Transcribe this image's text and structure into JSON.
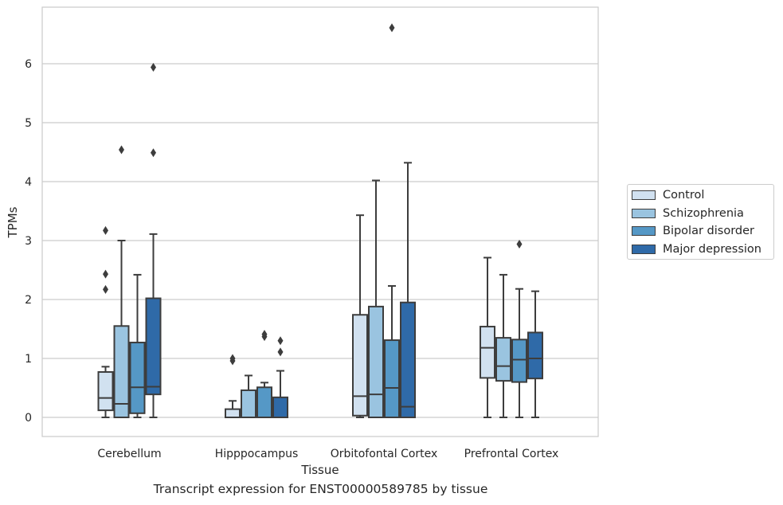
{
  "chart_data": {
    "type": "box",
    "caption": "Transcript expression for ENST00000589785 by tissue",
    "xlabel": "Tissue",
    "ylabel": "TPMs",
    "ylim": [
      -0.32,
      6.95
    ],
    "yticks": [
      "0",
      "1",
      "2",
      "3",
      "4",
      "5",
      "6"
    ],
    "ytick_values": [
      0,
      1,
      2,
      3,
      4,
      5,
      6
    ],
    "grid": true,
    "legend_position": "right",
    "categories": [
      "Cerebellum",
      "Hipppocampus",
      "Orbitofontal Cortex",
      "Prefrontal Cortex"
    ],
    "series": [
      {
        "name": "Control",
        "color": "#d1e1f0",
        "boxes": [
          {
            "whislo": 0,
            "q1": 0.12,
            "med": 0.33,
            "q3": 0.77,
            "whishi": 0.86,
            "fliers": [
              2.17,
              2.43,
              3.17
            ]
          },
          {
            "whislo": 0,
            "q1": 0,
            "med": 0,
            "q3": 0.14,
            "whishi": 0.28,
            "fliers": [
              0.96,
              1.0
            ]
          },
          {
            "whislo": 0,
            "q1": 0.03,
            "med": 0.36,
            "q3": 1.74,
            "whishi": 3.43,
            "fliers": []
          },
          {
            "whislo": 0,
            "q1": 0.67,
            "med": 1.18,
            "q3": 1.54,
            "whishi": 2.71,
            "fliers": []
          }
        ]
      },
      {
        "name": "Schizophrenia",
        "color": "#9ac4e0",
        "boxes": [
          {
            "whislo": 0,
            "q1": 0,
            "med": 0.23,
            "q3": 1.55,
            "whishi": 3.0,
            "fliers": [
              4.54
            ]
          },
          {
            "whislo": 0,
            "q1": 0,
            "med": 0,
            "q3": 0.46,
            "whishi": 0.71,
            "fliers": []
          },
          {
            "whislo": 0,
            "q1": 0,
            "med": 0.39,
            "q3": 1.88,
            "whishi": 4.02,
            "fliers": []
          },
          {
            "whislo": 0,
            "q1": 0.62,
            "med": 0.87,
            "q3": 1.35,
            "whishi": 2.42,
            "fliers": []
          }
        ]
      },
      {
        "name": "Bipolar disorder",
        "color": "#5598c6",
        "boxes": [
          {
            "whislo": 0,
            "q1": 0.07,
            "med": 0.51,
            "q3": 1.27,
            "whishi": 2.42,
            "fliers": []
          },
          {
            "whislo": 0,
            "q1": 0,
            "med": 0,
            "q3": 0.51,
            "whishi": 0.59,
            "fliers": [
              1.37,
              1.41
            ]
          },
          {
            "whislo": 0,
            "q1": 0,
            "med": 0.5,
            "q3": 1.31,
            "whishi": 2.23,
            "fliers": [
              6.61
            ]
          },
          {
            "whislo": 0,
            "q1": 0.6,
            "med": 0.98,
            "q3": 1.32,
            "whishi": 2.18,
            "fliers": [
              2.94
            ]
          }
        ]
      },
      {
        "name": "Major depression",
        "color": "#2f6aa8",
        "boxes": [
          {
            "whislo": 0,
            "q1": 0.39,
            "med": 0.52,
            "q3": 2.02,
            "whishi": 3.11,
            "fliers": [
              4.49,
              5.94
            ]
          },
          {
            "whislo": 0,
            "q1": 0,
            "med": 0,
            "q3": 0.34,
            "whishi": 0.79,
            "fliers": [
              1.11,
              1.3
            ]
          },
          {
            "whislo": 0,
            "q1": 0,
            "med": 0.18,
            "q3": 1.95,
            "whishi": 4.32,
            "fliers": []
          },
          {
            "whislo": 0,
            "q1": 0.66,
            "med": 1.0,
            "q3": 1.44,
            "whishi": 2.14,
            "fliers": []
          }
        ]
      }
    ]
  }
}
